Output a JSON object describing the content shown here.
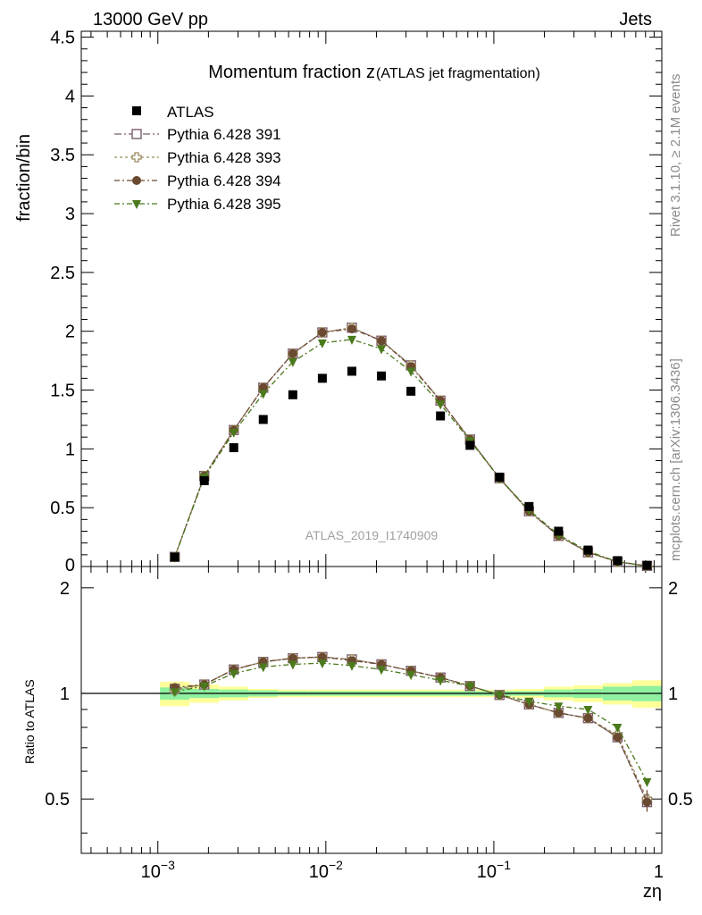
{
  "header": {
    "left": "13000 GeV pp",
    "right": "Jets"
  },
  "side_labels": {
    "rivet": "Rivet 3.1.10, ≥ 2.1M events",
    "mcplots": "mcplots.cern.ch [arXiv:1306.3436]"
  },
  "chart_data": {
    "type": "scatter",
    "title_main": "Momentum fraction z",
    "title_sub": "(ATLAS jet fragmentation)",
    "analysis_label": "ATLAS_2019_I1740909",
    "xlabel": "zη",
    "ylabel_top": "fraction/bin",
    "ylabel_bottom": "Ratio to ATLAS",
    "xscale": "log",
    "xlim": [
      0.00035,
      1.0
    ],
    "ylim_top": [
      0,
      4.55
    ],
    "ylim_bottom": [
      0.35,
      2.3
    ],
    "x_ticks": [
      {
        "value": 0.001,
        "base": "10",
        "exp": "−3"
      },
      {
        "value": 0.01,
        "base": "10",
        "exp": "−2"
      },
      {
        "value": 0.1,
        "base": "10",
        "exp": "−1"
      },
      {
        "value": 1,
        "base": "1",
        "exp": ""
      }
    ],
    "y_ticks_top": [
      "0",
      "0.5",
      "1",
      "1.5",
      "2",
      "2.5",
      "3",
      "3.5",
      "4",
      "4.5"
    ],
    "y_ticks_bottom": [
      "0.5",
      "1",
      "2"
    ],
    "legend_position": "top-left",
    "x": [
      0.00126,
      0.00189,
      0.00283,
      0.00424,
      0.00636,
      0.00953,
      0.01429,
      0.02142,
      0.03211,
      0.04813,
      0.07214,
      0.1081,
      0.162,
      0.2428,
      0.3638,
      0.5451,
      0.8166
    ],
    "bin_edges": [
      0.00103,
      0.00154,
      0.00231,
      0.00346,
      0.00519,
      0.00778,
      0.01166,
      0.01748,
      0.0262,
      0.03927,
      0.05886,
      0.08822,
      0.1322,
      0.1982,
      0.2971,
      0.4453,
      0.6674,
      1.0
    ],
    "data": {
      "name": "ATLAS",
      "values": [
        0.08,
        0.73,
        1.01,
        1.25,
        1.46,
        1.6,
        1.66,
        1.62,
        1.49,
        1.28,
        1.03,
        0.76,
        0.51,
        0.3,
        0.14,
        0.05,
        0.01
      ],
      "band_inner": [
        0.04,
        0.03,
        0.025,
        0.02,
        0.015,
        0.015,
        0.015,
        0.015,
        0.015,
        0.015,
        0.015,
        0.015,
        0.015,
        0.025,
        0.03,
        0.045,
        0.05
      ],
      "band_outer": [
        0.08,
        0.06,
        0.045,
        0.03,
        0.025,
        0.025,
        0.025,
        0.025,
        0.025,
        0.025,
        0.025,
        0.025,
        0.03,
        0.045,
        0.055,
        0.07,
        0.09
      ]
    },
    "series": [
      {
        "name": "Pythia 6.428 391",
        "color": "#7b5c6e",
        "marker": "open-square",
        "dash": "8,3,2,3",
        "values": [
          0.082,
          0.77,
          1.16,
          1.52,
          1.81,
          1.99,
          2.03,
          1.92,
          1.71,
          1.41,
          1.08,
          0.75,
          0.47,
          0.26,
          0.12,
          0.04,
          0.005
        ],
        "ratio": [
          1.03,
          1.06,
          1.17,
          1.23,
          1.26,
          1.27,
          1.25,
          1.21,
          1.16,
          1.11,
          1.05,
          0.99,
          0.93,
          0.88,
          0.85,
          0.75,
          0.49
        ]
      },
      {
        "name": "Pythia 6.428 393",
        "color": "#9a8a5c",
        "marker": "open-cross",
        "dash": "3,3",
        "values": [
          0.081,
          0.77,
          1.16,
          1.52,
          1.81,
          1.99,
          2.03,
          1.92,
          1.71,
          1.41,
          1.08,
          0.75,
          0.47,
          0.26,
          0.12,
          0.04,
          0.005
        ],
        "ratio": [
          1.02,
          1.06,
          1.17,
          1.23,
          1.26,
          1.27,
          1.25,
          1.21,
          1.16,
          1.11,
          1.05,
          0.99,
          0.93,
          0.88,
          0.85,
          0.76,
          0.5
        ]
      },
      {
        "name": "Pythia 6.428 394",
        "color": "#6b4a32",
        "marker": "filled-circle",
        "dash": "6,3,2,3",
        "values": [
          0.082,
          0.77,
          1.16,
          1.52,
          1.81,
          1.99,
          2.02,
          1.92,
          1.7,
          1.41,
          1.08,
          0.75,
          0.47,
          0.26,
          0.12,
          0.04,
          0.005
        ],
        "ratio": [
          1.04,
          1.06,
          1.17,
          1.23,
          1.26,
          1.27,
          1.24,
          1.21,
          1.16,
          1.11,
          1.05,
          0.99,
          0.93,
          0.88,
          0.85,
          0.75,
          0.49
        ]
      },
      {
        "name": "Pythia 6.428 395",
        "color": "#4a7a1c",
        "marker": "filled-triangle-down",
        "dash": "6,3,2,3",
        "values": [
          0.08,
          0.76,
          1.14,
          1.47,
          1.74,
          1.9,
          1.93,
          1.85,
          1.66,
          1.38,
          1.07,
          0.75,
          0.48,
          0.27,
          0.13,
          0.04,
          0.006
        ],
        "ratio": [
          1.01,
          1.05,
          1.14,
          1.19,
          1.21,
          1.22,
          1.2,
          1.17,
          1.13,
          1.09,
          1.05,
          0.99,
          0.95,
          0.92,
          0.9,
          0.8,
          0.56
        ]
      }
    ]
  }
}
